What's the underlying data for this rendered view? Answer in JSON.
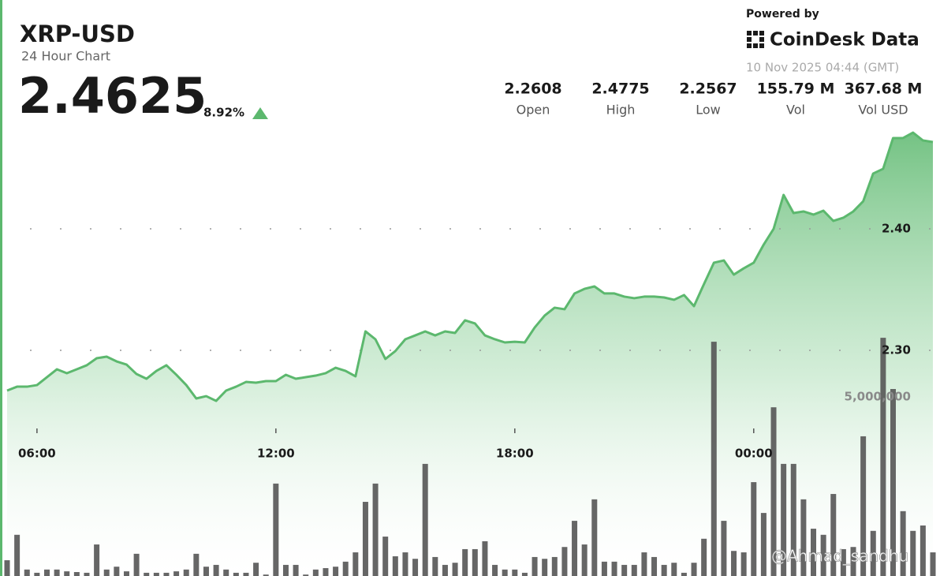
{
  "header": {
    "title": "XRP-USD",
    "subtitle": "24 Hour Chart",
    "price": "2.4625",
    "change": "8.92%",
    "powered_by": "Powered by",
    "brand": "CoinDesk Data",
    "timestamp": "10 Nov 2025 04:44 (GMT)",
    "stats": [
      {
        "value": "2.2608",
        "label": "Open"
      },
      {
        "value": "2.4775",
        "label": "High"
      },
      {
        "value": "2.2567",
        "label": "Low"
      },
      {
        "value": "155.79 M",
        "label": "Vol"
      },
      {
        "value": "367.68 M",
        "label": "Vol USD"
      }
    ],
    "watermark": "@Ahmad_sandhu"
  },
  "chart_data": {
    "type": "line",
    "categories": [
      null,
      null,
      null,
      "06:00",
      null,
      null,
      null,
      null,
      null,
      null,
      null,
      null,
      null,
      null,
      null,
      null,
      null,
      null,
      null,
      null,
      null,
      null,
      null,
      null,
      null,
      null,
      null,
      "12:00",
      null,
      null,
      null,
      null,
      null,
      null,
      null,
      null,
      null,
      null,
      null,
      null,
      null,
      null,
      null,
      null,
      null,
      null,
      null,
      null,
      null,
      null,
      null,
      "18:00",
      null,
      null,
      null,
      null,
      null,
      null,
      null,
      null,
      null,
      null,
      null,
      null,
      null,
      null,
      null,
      null,
      null,
      null,
      null,
      null,
      null,
      null,
      null,
      "00:00",
      null,
      null,
      null,
      null,
      null,
      null,
      null,
      null,
      null,
      null,
      null,
      null,
      null,
      null,
      null,
      null,
      null,
      null
    ],
    "series": [
      {
        "color": "#5cb86e",
        "values": [
          2.2669,
          2.2701,
          2.2701,
          2.2714,
          2.2779,
          2.2844,
          2.2812,
          2.2844,
          2.2877,
          2.2935,
          2.2948,
          2.2909,
          2.2883,
          2.2805,
          2.2766,
          2.2831,
          2.2877,
          2.2799,
          2.2714,
          2.2604,
          2.2623,
          2.2584,
          2.2669,
          2.2701,
          2.274,
          2.2734,
          2.2747,
          2.2747,
          2.2799,
          2.2766,
          2.2779,
          2.2792,
          2.2812,
          2.2857,
          2.2831,
          2.2786,
          2.3156,
          2.3091,
          2.2929,
          2.2994,
          2.3091,
          2.3123,
          2.3156,
          2.3123,
          2.3156,
          2.3143,
          2.3247,
          2.3221,
          2.3123,
          2.3091,
          2.3065,
          2.3071,
          2.3065,
          2.3188,
          2.3286,
          2.3351,
          2.3338,
          2.3468,
          2.3506,
          2.3526,
          2.3468,
          2.3468,
          2.3442,
          2.3429,
          2.3442,
          2.3442,
          2.3435,
          2.3416,
          2.3455,
          2.3364,
          2.3545,
          2.3721,
          2.374,
          2.3623,
          2.3675,
          2.3721,
          2.387,
          2.4,
          2.4279,
          2.413,
          2.4143,
          2.4117,
          2.4149,
          2.4065,
          2.4091,
          2.4143,
          2.4227,
          2.4455,
          2.4494,
          2.4747,
          2.4747,
          2.4792,
          2.4727,
          2.4714
        ]
      },
      {
        "color": "#555555",
        "type": "bar",
        "axis": "y2",
        "values": [
          440000,
          1150000,
          180000,
          90000,
          180000,
          180000,
          130000,
          110000,
          90000,
          880000,
          180000,
          260000,
          130000,
          620000,
          90000,
          90000,
          90000,
          130000,
          180000,
          620000,
          260000,
          310000,
          180000,
          90000,
          90000,
          370000,
          40000,
          2580000,
          310000,
          310000,
          40000,
          180000,
          220000,
          260000,
          400000,
          660000,
          2070000,
          2580000,
          1100000,
          550000,
          660000,
          480000,
          3130000,
          530000,
          310000,
          370000,
          750000,
          750000,
          970000,
          310000,
          180000,
          180000,
          90000,
          530000,
          480000,
          530000,
          810000,
          1540000,
          880000,
          2140000,
          400000,
          400000,
          310000,
          310000,
          660000,
          530000,
          310000,
          370000,
          90000,
          370000,
          1040000,
          6540000,
          1540000,
          700000,
          660000,
          2620000,
          1760000,
          4710000,
          3130000,
          3130000,
          2140000,
          1320000,
          1150000,
          2290000,
          750000,
          810000,
          3900000,
          1260000,
          6650000,
          5220000,
          1810000,
          1260000,
          1410000,
          660000
        ]
      }
    ],
    "ylim": [
      2.1143,
      2.5883
    ],
    "yticks": [
      {
        "value": 2.4,
        "label": "2.40"
      },
      {
        "value": 2.3,
        "label": "2.30"
      }
    ],
    "y2lim": [
      0,
      16080000
    ],
    "y2ticks": [
      {
        "value": 5000000,
        "label": "5,000,000"
      }
    ],
    "grid": true
  }
}
